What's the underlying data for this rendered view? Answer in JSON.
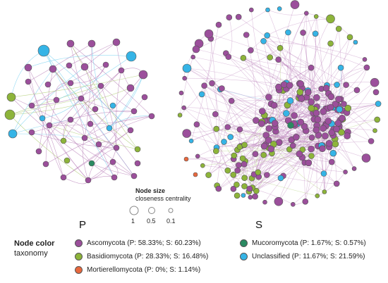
{
  "panels": {
    "left_label": "P",
    "right_label": "S"
  },
  "node_size_legend": {
    "title": "Node size",
    "subtitle": "closeness centrality",
    "values": [
      "1",
      "0.5",
      "0.1"
    ]
  },
  "node_color_legend": {
    "title": "Node color",
    "subtitle": "taxonomy",
    "items": [
      {
        "label": "Ascomycota (P: 58.33%; S: 60.23%)",
        "color": "#9b4f9b"
      },
      {
        "label": "Basidiomycota (P: 28.33%; S: 16.48%)",
        "color": "#8db43a"
      },
      {
        "label": "Mortierellomycota (P: 0%; S: 1.14%)",
        "color": "#e8683d"
      },
      {
        "label": "Mucoromycota (P: 1.67%; S: 0.57%)",
        "color": "#2a8a62"
      },
      {
        "label": "Unclassified (P: 11.67%; S: 21.59%)",
        "color": "#35b4e6"
      }
    ]
  },
  "colors": {
    "edge_asco": "#b77db7",
    "edge_basidio": "#a9c96a",
    "edge_uncl": "#6fcdef"
  }
}
